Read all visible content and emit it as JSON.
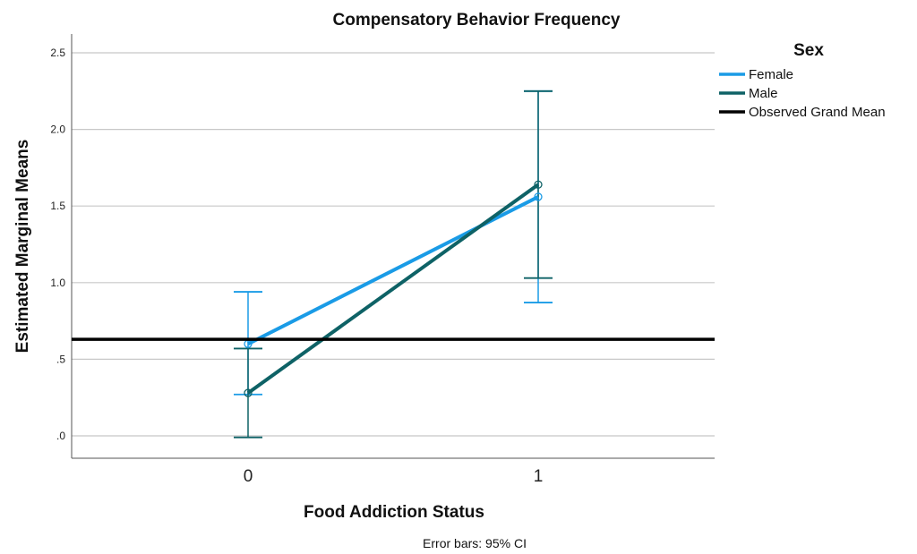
{
  "chart_data": {
    "type": "line",
    "title": "Compensatory Behavior Frequency",
    "xlabel": "Food Addiction Status",
    "ylabel": "Estimated Marginal Means",
    "categories": [
      "0",
      "1"
    ],
    "y_ticks": [
      ".0",
      ".5",
      "1.0",
      "1.5",
      "2.0",
      "2.5"
    ],
    "y_tick_values": [
      0,
      0.5,
      1.0,
      1.5,
      2.0,
      2.5
    ],
    "ylim": [
      -0.15,
      2.65
    ],
    "grid": "horizontal",
    "legend_title": "Sex",
    "legend_position": "right",
    "series": [
      {
        "name": "Female",
        "color": "#1a9be6",
        "values": [
          0.6,
          1.56
        ],
        "ci_low": [
          0.27,
          0.87
        ],
        "ci_high": [
          0.94,
          2.25
        ]
      },
      {
        "name": "Male",
        "color": "#0e6266",
        "values": [
          0.28,
          1.64
        ],
        "ci_low": [
          -0.01,
          1.03
        ],
        "ci_high": [
          0.57,
          2.25
        ]
      }
    ],
    "reference_line": {
      "name": "Observed Grand Mean",
      "value": 0.63,
      "color": "#000000"
    },
    "note": "Error bars: 95% CI"
  }
}
